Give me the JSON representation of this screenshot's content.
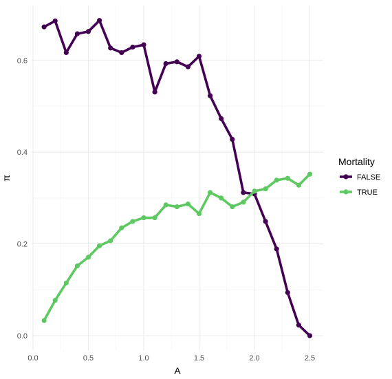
{
  "chart_data": {
    "type": "line",
    "xlabel": "A",
    "ylabel": "π",
    "xlim": [
      0.0,
      2.5
    ],
    "ylim": [
      0.0,
      0.6
    ],
    "x_ticks": [
      "0.0",
      "0.5",
      "1.0",
      "1.5",
      "2.0",
      "2.5"
    ],
    "y_ticks": [
      "0.0",
      "0.2",
      "0.4",
      "0.6"
    ],
    "grid": true,
    "legend": {
      "title": "Mortality",
      "position": "right"
    },
    "x": [
      0.1,
      0.2,
      0.3,
      0.4,
      0.5,
      0.6,
      0.7,
      0.8,
      0.9,
      1.0,
      1.1,
      1.2,
      1.3,
      1.4,
      1.5,
      1.6,
      1.7,
      1.8,
      1.9,
      2.0,
      2.1,
      2.2,
      2.3,
      2.4,
      2.5
    ],
    "series": [
      {
        "name": "FALSE",
        "color": "#440154",
        "values": [
          0.673,
          0.686,
          0.617,
          0.658,
          0.663,
          0.687,
          0.627,
          0.617,
          0.629,
          0.634,
          0.531,
          0.593,
          0.597,
          0.586,
          0.609,
          0.523,
          0.473,
          0.428,
          0.312,
          0.309,
          0.249,
          0.189,
          0.094,
          0.023,
          0.0
        ]
      },
      {
        "name": "TRUE",
        "color": "#5ec962",
        "values": [
          0.033,
          0.077,
          0.115,
          0.152,
          0.171,
          0.196,
          0.207,
          0.235,
          0.249,
          0.257,
          0.257,
          0.285,
          0.281,
          0.287,
          0.266,
          0.312,
          0.3,
          0.281,
          0.291,
          0.315,
          0.32,
          0.339,
          0.343,
          0.328,
          0.352
        ]
      }
    ]
  }
}
